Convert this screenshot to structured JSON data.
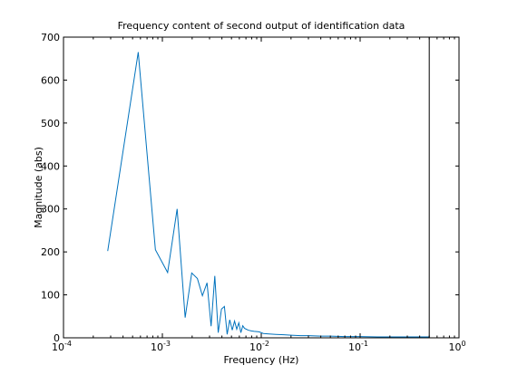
{
  "chart_data": {
    "type": "line",
    "title": "Frequency content of second output of identification data",
    "xlabel": "Frequency  (Hz)",
    "ylabel": "Magnitude (abs)",
    "x_scale": "log",
    "xlim": [
      0.0001,
      1
    ],
    "ylim": [
      0,
      700
    ],
    "x_ticks": [
      {
        "value": 0.0001,
        "base": "10",
        "exp": "-4"
      },
      {
        "value": 0.001,
        "base": "10",
        "exp": "-3"
      },
      {
        "value": 0.01,
        "base": "10",
        "exp": "-2"
      },
      {
        "value": 0.1,
        "base": "10",
        "exp": "-1"
      },
      {
        "value": 1,
        "base": "10",
        "exp": "0"
      }
    ],
    "y_ticks": [
      0,
      100,
      200,
      300,
      400,
      500,
      600,
      700
    ],
    "grid": false,
    "vertical_line": {
      "x": 0.5,
      "color": "#000000"
    },
    "series_color": "#0072bd",
    "series": [
      {
        "x": [
          0.00028,
          0.00057,
          0.00085,
          0.00113,
          0.00141,
          0.0017,
          0.00198,
          0.00226,
          0.00254,
          0.00283,
          0.00311,
          0.00339,
          0.00367,
          0.00396,
          0.00424,
          0.00452,
          0.0048,
          0.00509,
          0.00537,
          0.00565,
          0.00593,
          0.00622,
          0.0065,
          0.00678,
          0.00706,
          0.00735,
          0.00763,
          0.00791,
          0.0085,
          0.0095,
          0.0105,
          0.012,
          0.014,
          0.017,
          0.02,
          0.025,
          0.03,
          0.04,
          0.05,
          0.07,
          0.1,
          0.15,
          0.2,
          0.3,
          0.5
        ],
        "y": [
          202,
          665,
          205,
          152,
          300,
          47,
          151,
          138,
          98,
          128,
          27,
          144,
          12,
          67,
          73,
          8,
          42,
          18,
          39,
          20,
          35,
          12,
          28,
          22,
          20,
          18,
          17,
          16,
          15,
          14,
          10,
          9,
          8,
          7,
          6,
          5,
          5,
          4,
          4,
          3,
          3,
          2,
          2,
          2,
          2
        ]
      }
    ]
  }
}
